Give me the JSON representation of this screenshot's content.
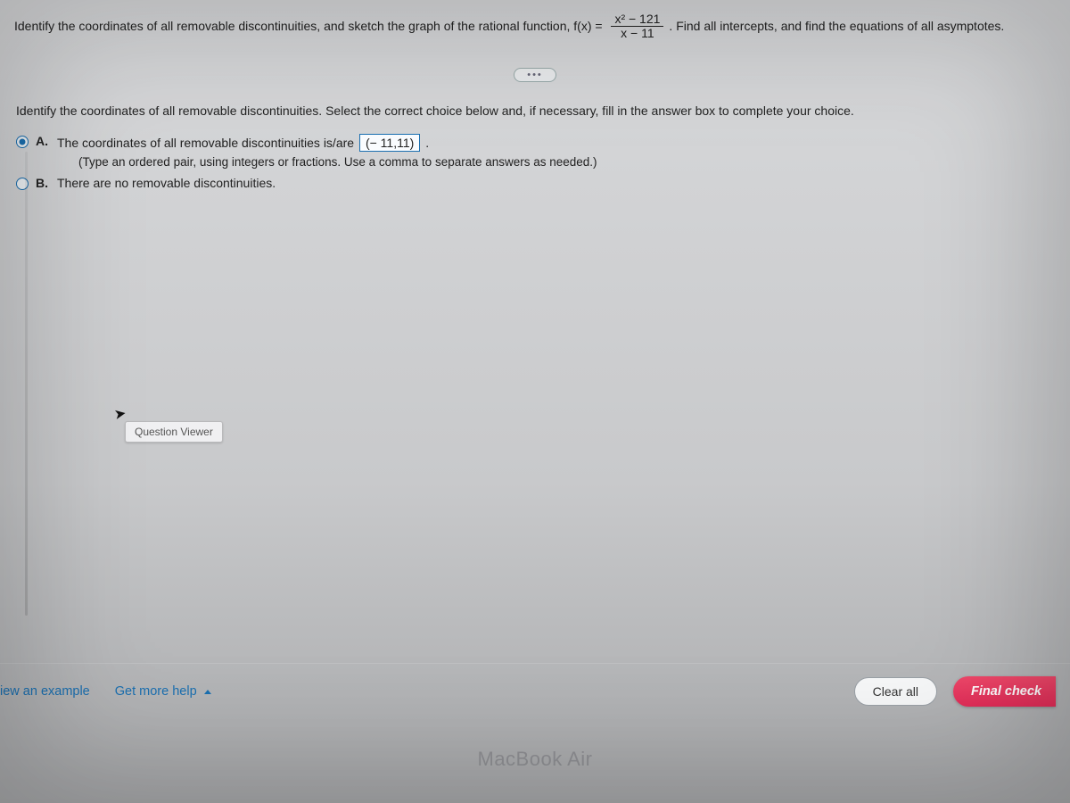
{
  "colors": {
    "accent_blue": "#1a6fb0",
    "accent_red": "#e22c58",
    "text": "#222222"
  },
  "question": {
    "pre_text": "Identify the coordinates of all removable discontinuities, and sketch the graph of the rational function, f(x) = ",
    "numerator": "x² − 121",
    "denominator": "x − 11",
    "post_text": ". Find all intercepts, and find the equations of all asymptotes."
  },
  "instruction": "Identify the coordinates of all removable discontinuities. Select the correct choice below and, if necessary, fill in the answer box to complete your choice.",
  "choices": {
    "a": {
      "label": "A.",
      "text_before": "The coordinates of all removable discontinuities is/are ",
      "answer_value": "(− 11,11)",
      "text_after": ".",
      "hint": "(Type an ordered pair, using integers or fractions. Use a comma to separate answers as needed.)",
      "selected": true
    },
    "b": {
      "label": "B.",
      "text": "There are no removable discontinuities.",
      "selected": false
    }
  },
  "tooltip": "Question Viewer",
  "footer": {
    "view_example": "iew an example",
    "get_help": "Get more help",
    "clear_all": "Clear all",
    "final_check": "Final check"
  },
  "device_label": "MacBook Air"
}
